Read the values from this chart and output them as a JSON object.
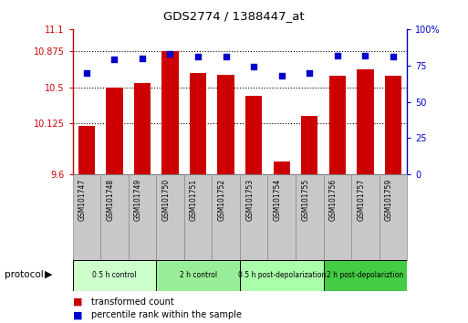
{
  "title": "GDS2774 / 1388447_at",
  "samples": [
    "GSM101747",
    "GSM101748",
    "GSM101749",
    "GSM101750",
    "GSM101751",
    "GSM101752",
    "GSM101753",
    "GSM101754",
    "GSM101755",
    "GSM101756",
    "GSM101757",
    "GSM101759"
  ],
  "bar_values": [
    10.1,
    10.5,
    10.54,
    10.87,
    10.65,
    10.63,
    10.41,
    9.73,
    10.2,
    10.62,
    10.68,
    10.62
  ],
  "dot_values": [
    70,
    79,
    80,
    83,
    81,
    81,
    74,
    68,
    70,
    82,
    82,
    81
  ],
  "ymin": 9.6,
  "ymax": 11.1,
  "y2min": 0,
  "y2max": 100,
  "yticks": [
    9.6,
    10.125,
    10.5,
    10.875,
    11.1
  ],
  "ytick_labels": [
    "9.6",
    "10.125",
    "10.5",
    "10.875",
    "11.1"
  ],
  "y2ticks": [
    0,
    25,
    50,
    75,
    100
  ],
  "y2tick_labels": [
    "0",
    "25",
    "50",
    "75",
    "100%"
  ],
  "hlines": [
    10.125,
    10.5,
    10.875
  ],
  "bar_color": "#cc0000",
  "dot_color": "#0000cc",
  "bar_width": 0.6,
  "protocols": [
    {
      "label": "0.5 h control",
      "start": 0,
      "end": 3,
      "color": "#ccffcc"
    },
    {
      "label": "2 h control",
      "start": 3,
      "end": 6,
      "color": "#99ee99"
    },
    {
      "label": "0.5 h post-depolarization",
      "start": 6,
      "end": 9,
      "color": "#aaffaa"
    },
    {
      "label": "2 h post-depolariztion",
      "start": 9,
      "end": 12,
      "color": "#44cc44"
    }
  ],
  "legend_bar_label": "transformed count",
  "legend_dot_label": "percentile rank within the sample",
  "protocol_label": "protocol",
  "background_color": "#ffffff",
  "plot_bg": "#ffffff",
  "left_axis_color": "#cc0000",
  "right_axis_color": "#0000cc",
  "sample_box_color": "#c8c8c8",
  "sample_box_edge": "#888888"
}
